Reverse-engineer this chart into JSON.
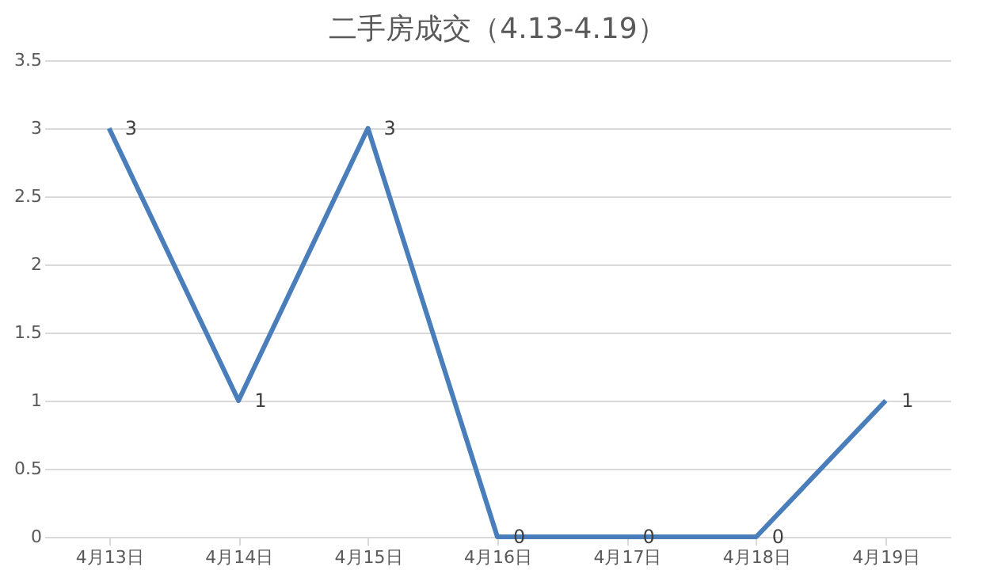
{
  "chart_data": {
    "type": "line",
    "title": "二手房成交（4.13-4.19）",
    "categories": [
      "4月13日",
      "4月14日",
      "4月15日",
      "4月16日",
      "4月17日",
      "4月18日",
      "4月19日"
    ],
    "series": [
      {
        "color": "#4a7ebb",
        "values": [
          3,
          1,
          3,
          0,
          0,
          0,
          1
        ]
      }
    ],
    "ylim": [
      0,
      3.5
    ],
    "yticks": [
      0,
      0.5,
      1,
      1.5,
      2,
      2.5,
      3,
      3.5
    ],
    "grid": "y",
    "data_labels": true,
    "marker": "none",
    "line_style": "solid"
  }
}
